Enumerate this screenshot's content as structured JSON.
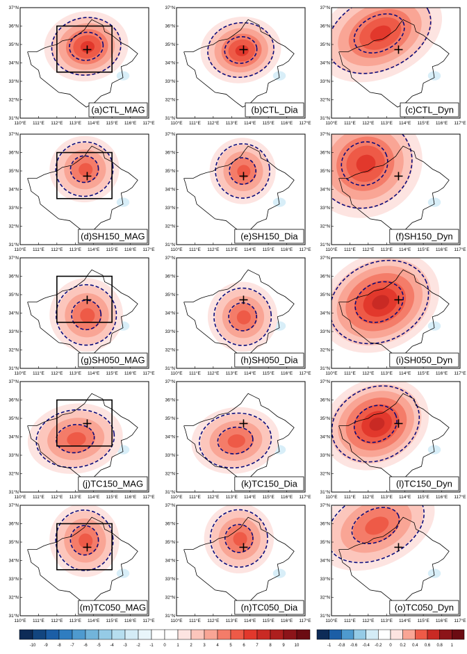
{
  "figure": {
    "lat_ticks": [
      "31°N",
      "32°N",
      "33°N",
      "34°N",
      "35°N",
      "36°N",
      "37°N"
    ],
    "lon_ticks": [
      "110°E",
      "111°E",
      "112°E",
      "113°E",
      "114°E",
      "115°E",
      "116°E",
      "117°E"
    ],
    "panels": [
      {
        "label": "(a)CTL_MAG",
        "kind": "MAG",
        "box": true,
        "blob": [
          113.6,
          34.9,
          2.3,
          1.9
        ],
        "levels": 6
      },
      {
        "label": "(b)CTL_Dia",
        "kind": "Dia",
        "box": false,
        "blob": [
          113.5,
          34.7,
          2.2,
          1.8
        ],
        "levels": 6
      },
      {
        "label": "(c)CTL_Dyn",
        "kind": "Dyn",
        "box": false,
        "blob": [
          112.6,
          35.6,
          3.6,
          2.4
        ],
        "levels": 6
      },
      {
        "label": "(d)SH150_MAG",
        "kind": "MAG",
        "box": true,
        "blob": [
          113.5,
          35.1,
          1.9,
          1.8
        ],
        "levels": 5
      },
      {
        "label": "(e)SH150_Dia",
        "kind": "Dia",
        "box": false,
        "blob": [
          113.6,
          35.0,
          1.8,
          1.8
        ],
        "levels": 5
      },
      {
        "label": "(f)SH150_Dyn",
        "kind": "Dyn",
        "box": false,
        "blob": [
          111.8,
          35.4,
          3.2,
          2.9
        ],
        "levels": 6
      },
      {
        "label": "(g)SH050_MAG",
        "kind": "MAG",
        "box": true,
        "blob": [
          113.6,
          33.9,
          2.0,
          2.0
        ],
        "levels": 5
      },
      {
        "label": "(h)SH050_Dia",
        "kind": "Dia",
        "box": false,
        "blob": [
          113.6,
          33.8,
          1.9,
          1.9
        ],
        "levels": 5
      },
      {
        "label": "(i)SH050_Dyn",
        "kind": "Dyn",
        "box": false,
        "blob": [
          112.6,
          34.6,
          3.4,
          2.6
        ],
        "levels": 7
      },
      {
        "label": "(j)TC150_MAG",
        "kind": "MAG",
        "box": true,
        "blob": [
          113.0,
          33.9,
          2.6,
          1.9
        ],
        "levels": 5
      },
      {
        "label": "(k)TC150_Dia",
        "kind": "Dia",
        "box": false,
        "blob": [
          113.2,
          33.8,
          2.4,
          1.8
        ],
        "levels": 5
      },
      {
        "label": "(l)TC150_Dyn",
        "kind": "Dyn",
        "box": false,
        "blob": [
          112.4,
          34.7,
          3.0,
          2.4
        ],
        "levels": 7
      },
      {
        "label": "(m)TC050_MAG",
        "kind": "MAG",
        "box": true,
        "blob": [
          113.5,
          35.1,
          1.9,
          2.0
        ],
        "levels": 5
      },
      {
        "label": "(n)TC050_Dia",
        "kind": "Dia",
        "box": false,
        "blob": [
          113.4,
          35.2,
          1.9,
          1.9
        ],
        "levels": 5
      },
      {
        "label": "(o)TC050_Dyn",
        "kind": "Dyn",
        "box": false,
        "blob": [
          112.4,
          35.9,
          3.4,
          2.2
        ],
        "levels": 5
      }
    ],
    "colorbar_left": {
      "labels": [
        "-10",
        "-9",
        "-8",
        "-7",
        "-6",
        "-5",
        "-4",
        "-3",
        "-2",
        "-1",
        "0",
        "1",
        "2",
        "3",
        "4",
        "5",
        "6",
        "7",
        "8",
        "9",
        "10"
      ]
    },
    "colorbar_right": {
      "labels": [
        "-1",
        "-0.8",
        "-0.6",
        "-0.4",
        "-0.2",
        "0",
        "0.2",
        "0.4",
        "0.6",
        "0.8",
        "1"
      ]
    },
    "colors": {
      "positive": [
        "#ffffff",
        "#fde4e1",
        "#fcc6bc",
        "#f9a595",
        "#f47c69",
        "#ee5a47",
        "#e2382c",
        "#c92a24",
        "#ad1f1e",
        "#8c1419",
        "#6b0b12"
      ],
      "negative": [
        "#0d2b57",
        "#12457f",
        "#1b5ea6",
        "#2f7dc0",
        "#4e9acf",
        "#72b4da",
        "#95cbe6",
        "#b6deef",
        "#d4ecf6",
        "#e9f6fb"
      ],
      "contour": "#0a0a7a",
      "blue_patch": "#d8eef8"
    }
  }
}
